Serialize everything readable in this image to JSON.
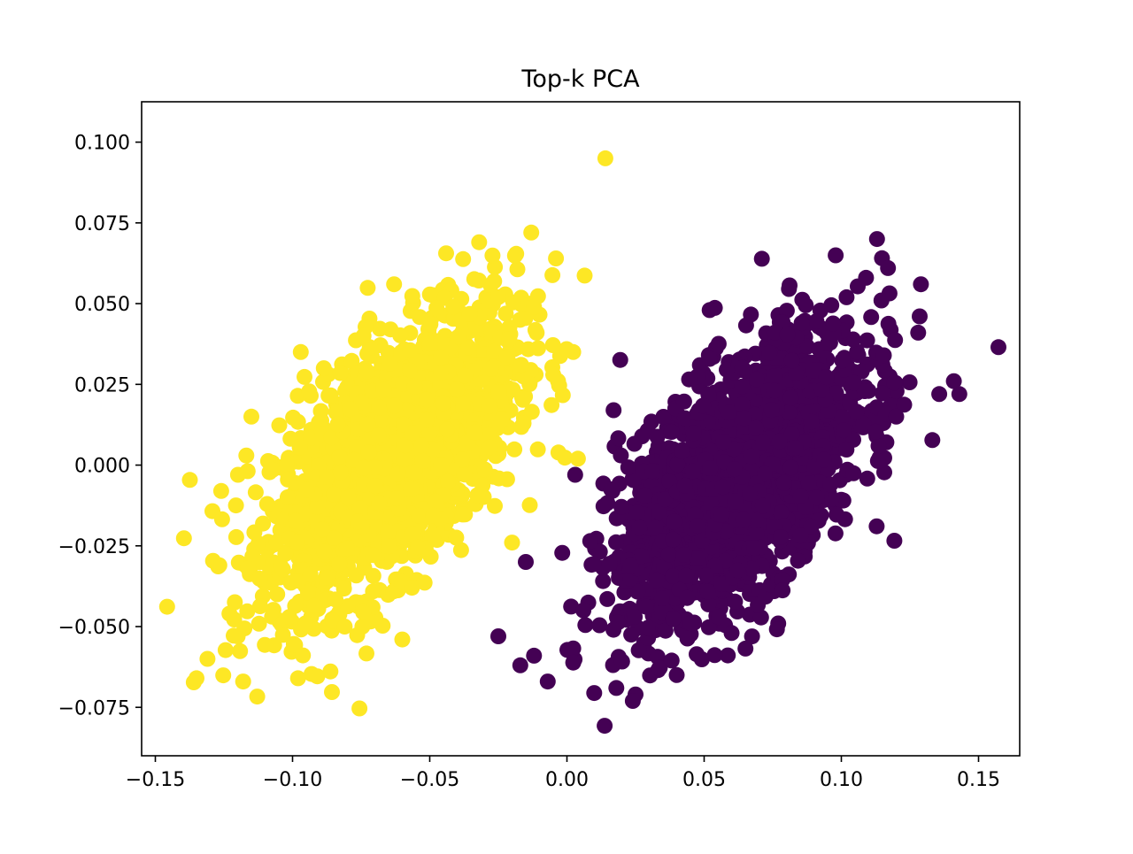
{
  "chart_data": {
    "type": "scatter",
    "title": "Top-k PCA",
    "xlabel": "",
    "ylabel": "",
    "xlim": [
      -0.155,
      0.165
    ],
    "ylim": [
      -0.09,
      0.1125
    ],
    "xticks": [
      -0.15,
      -0.1,
      -0.05,
      0.0,
      0.05,
      0.1,
      0.15
    ],
    "xtick_labels": [
      "−0.15",
      "−0.10",
      "−0.05",
      "0.00",
      "0.05",
      "0.10",
      "0.15"
    ],
    "yticks": [
      -0.075,
      -0.05,
      -0.025,
      0.0,
      0.025,
      0.05,
      0.075,
      0.1
    ],
    "ytick_labels": [
      "−0.075",
      "−0.050",
      "−0.025",
      "0.000",
      "0.025",
      "0.050",
      "0.075",
      "0.100"
    ],
    "grid": false,
    "legend": "none",
    "series": [
      {
        "color": "#fde725",
        "points_shown": "cluster of ~2000 points centered near (-0.063, 0.003) with positive correlation; outliers listed",
        "center": [
          -0.063,
          0.003
        ],
        "spread": [
          0.022,
          0.022
        ],
        "correlation": 0.6,
        "count": 2000,
        "x": [
          0.014,
          -0.135,
          -0.131,
          -0.118,
          -0.098,
          -0.12,
          -0.123,
          -0.126,
          -0.097,
          -0.115,
          -0.02,
          -0.013,
          -0.032,
          -0.063,
          -0.012,
          -0.004,
          -0.025,
          -0.021,
          -0.005,
          0.004,
          -0.081,
          -0.06
        ],
        "y": [
          0.095,
          -0.066,
          -0.06,
          -0.067,
          -0.066,
          -0.053,
          -0.046,
          -0.008,
          0.035,
          0.015,
          -0.024,
          0.072,
          0.069,
          0.056,
          0.049,
          0.064,
          0.052,
          0.039,
          0.028,
          0.002,
          -0.05,
          -0.054
        ]
      },
      {
        "color": "#440154",
        "points_shown": "cluster of ~2000 points centered near (0.063, -0.004) with positive correlation; outliers listed",
        "center": [
          0.063,
          -0.004
        ],
        "spread": [
          0.022,
          0.022
        ],
        "correlation": 0.6,
        "count": 2000,
        "x": [
          0.113,
          0.143,
          0.141,
          0.129,
          0.117,
          0.109,
          0.052,
          0.025,
          0.024,
          -0.025,
          -0.017,
          -0.007,
          -0.012,
          -0.015,
          0.003,
          0.017,
          0.006,
          0.018,
          0.04,
          0.06,
          0.12,
          0.128
        ],
        "y": [
          0.07,
          0.022,
          0.026,
          0.056,
          0.061,
          0.058,
          0.048,
          -0.071,
          -0.073,
          -0.053,
          -0.062,
          -0.067,
          -0.059,
          -0.03,
          -0.003,
          0.017,
          -0.045,
          -0.069,
          -0.065,
          -0.052,
          0.015,
          0.041
        ]
      }
    ]
  }
}
